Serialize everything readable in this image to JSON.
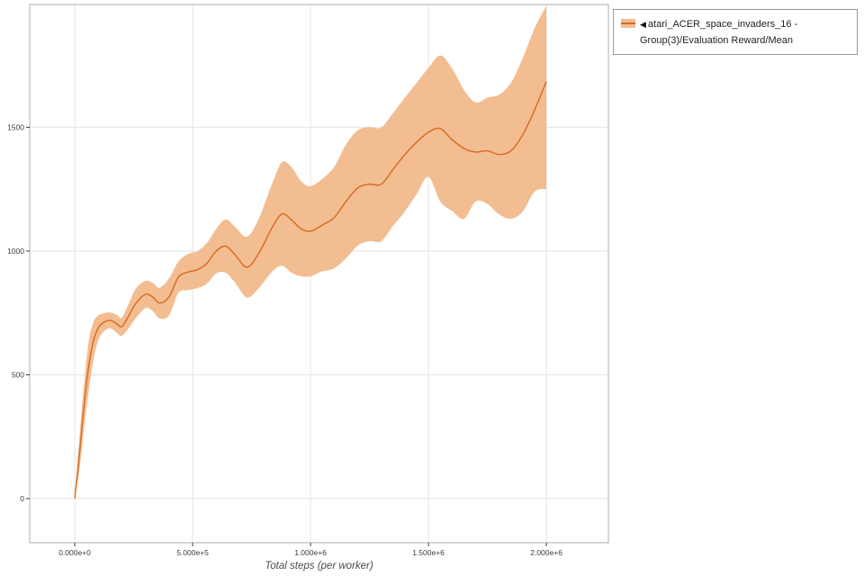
{
  "page": {
    "background": "#ffffff"
  },
  "colors": {
    "line": "#d9691b",
    "band": "#f3bd92",
    "grid": "#e4e4e4",
    "axis_border": "#aeaeae",
    "tick_text": "#3c3c3c"
  },
  "legend": {
    "icon": "◀",
    "label": "atari_ACER_space_invaders_16 - Group(3)/Evaluation Reward/Mean"
  },
  "chart_data": {
    "type": "line",
    "title": "",
    "xlabel": "Total steps (per worker)",
    "ylabel": "",
    "grid": true,
    "legend_position": "top-right",
    "xlim": [
      -191000,
      2263000
    ],
    "ylim": [
      -178,
      1996
    ],
    "x_ticks": [
      {
        "value": 0,
        "label": "0.000e+0"
      },
      {
        "value": 500000,
        "label": "5.000e+5"
      },
      {
        "value": 1000000,
        "label": "1.000e+6"
      },
      {
        "value": 1500000,
        "label": "1.500e+6"
      },
      {
        "value": 2000000,
        "label": "2.000e+6"
      }
    ],
    "y_ticks": [
      {
        "value": 0,
        "label": "0"
      },
      {
        "value": 500,
        "label": "500"
      },
      {
        "value": 1000,
        "label": "1000"
      },
      {
        "value": 1500,
        "label": "1500"
      }
    ],
    "series": [
      {
        "name": "atari_ACER_space_invaders_16 - Group(3)/Evaluation Reward/Mean",
        "color": "#d9691b",
        "band_color": "#f3bd92",
        "x": [
          0,
          20000,
          40000,
          60000,
          80000,
          100000,
          120000,
          150000,
          180000,
          200000,
          230000,
          260000,
          300000,
          330000,
          360000,
          400000,
          440000,
          480000,
          520000,
          560000,
          600000,
          640000,
          680000,
          730000,
          780000,
          840000,
          880000,
          920000,
          960000,
          1000000,
          1050000,
          1100000,
          1150000,
          1200000,
          1250000,
          1300000,
          1350000,
          1400000,
          1450000,
          1500000,
          1550000,
          1600000,
          1650000,
          1700000,
          1750000,
          1800000,
          1850000,
          1900000,
          1950000,
          2000000
        ],
        "mean": [
          0,
          180,
          380,
          540,
          640,
          690,
          710,
          720,
          705,
          695,
          740,
          790,
          825,
          815,
          790,
          815,
          895,
          915,
          925,
          950,
          1000,
          1020,
          985,
          935,
          990,
          1100,
          1150,
          1125,
          1090,
          1080,
          1105,
          1135,
          1200,
          1255,
          1270,
          1270,
          1330,
          1390,
          1440,
          1480,
          1495,
          1450,
          1415,
          1400,
          1405,
          1390,
          1405,
          1470,
          1570,
          1685
        ],
        "upper": [
          0,
          250,
          470,
          640,
          715,
          740,
          748,
          752,
          742,
          732,
          790,
          850,
          880,
          872,
          852,
          890,
          958,
          988,
          1000,
          1032,
          1090,
          1128,
          1098,
          1058,
          1130,
          1280,
          1360,
          1338,
          1282,
          1262,
          1292,
          1340,
          1430,
          1488,
          1500,
          1500,
          1558,
          1620,
          1680,
          1740,
          1790,
          1738,
          1652,
          1600,
          1620,
          1632,
          1680,
          1780,
          1900,
          1990
        ],
        "lower": [
          0,
          115,
          290,
          440,
          565,
          640,
          672,
          688,
          668,
          658,
          690,
          730,
          770,
          758,
          728,
          740,
          832,
          842,
          850,
          868,
          910,
          912,
          872,
          812,
          850,
          920,
          940,
          912,
          898,
          898,
          918,
          930,
          970,
          1022,
          1040,
          1040,
          1102,
          1160,
          1230,
          1300,
          1200,
          1162,
          1130,
          1200,
          1190,
          1148,
          1130,
          1160,
          1240,
          1250
        ]
      }
    ]
  }
}
